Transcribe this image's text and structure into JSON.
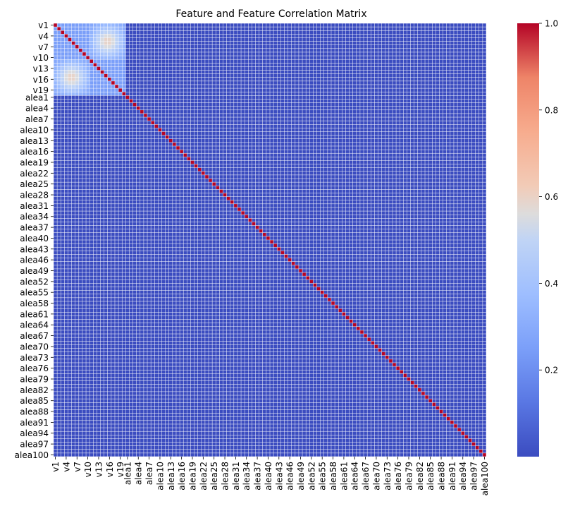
{
  "chart_data": {
    "type": "heatmap",
    "title": "Feature and Feature Correlation Matrix",
    "xlabel": "",
    "ylabel": "",
    "variables": {
      "signal_prefix": "v",
      "signal_count": 20,
      "noise_prefix": "alea",
      "noise_count": 100
    },
    "tick_labels": [
      "v1",
      "v4",
      "v7",
      "v10",
      "v13",
      "v16",
      "v19",
      "alea1",
      "alea4",
      "alea7",
      "alea10",
      "alea13",
      "alea16",
      "alea19",
      "alea22",
      "alea25",
      "alea28",
      "alea31",
      "alea34",
      "alea37",
      "alea40",
      "alea43",
      "alea46",
      "alea49",
      "alea52",
      "alea55",
      "alea58",
      "alea61",
      "alea64",
      "alea67",
      "alea70",
      "alea73",
      "alea76",
      "alea79",
      "alea82",
      "alea85",
      "alea88",
      "alea91",
      "alea94",
      "alea97",
      "alea100"
    ],
    "values_description": "Diagonal = 1.0. Within v1..v20: two groups v1..v10 and v11..v20, within-group correlation near 0.25, cross-group correlation ~0.6 at the group centres, decaying toward the group edges. All alea (noise) variables ~0 with each other and with v.",
    "structure": {
      "diagonal": 1.0,
      "within_group": 0.25,
      "cross_group_peak": 0.6,
      "noise": 0.0,
      "groups": [
        [
          1,
          10
        ],
        [
          11,
          20
        ]
      ]
    },
    "colorbar": {
      "cmap": "coolwarm",
      "min": 0.0,
      "max": 1.0,
      "ticks": [
        "0.2",
        "0.4",
        "0.6",
        "0.8",
        "1.0"
      ]
    },
    "colors": {
      "low": "#3b4cc0",
      "mid": "#dddddd",
      "high": "#b40426",
      "gridline": "#ffffff"
    }
  }
}
